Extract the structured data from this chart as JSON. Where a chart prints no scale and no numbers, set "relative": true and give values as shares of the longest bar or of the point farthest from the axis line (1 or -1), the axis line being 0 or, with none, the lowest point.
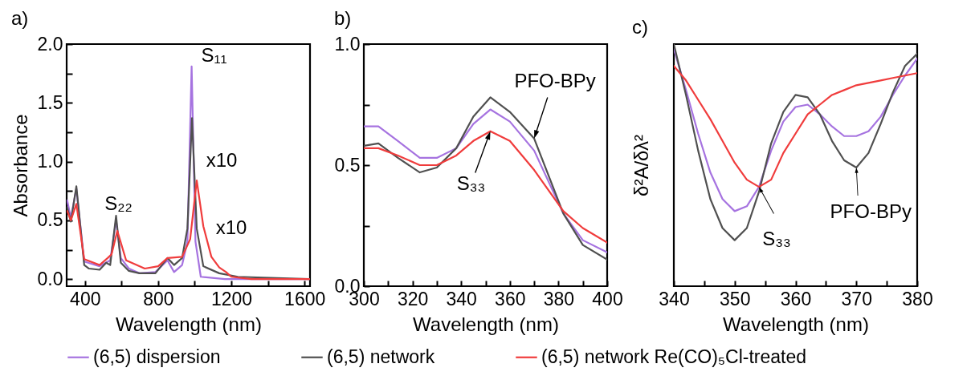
{
  "chart_data": [
    {
      "type": "line",
      "title": "a)",
      "xlabel": "Wavelength (nm)",
      "ylabel": "Absorbance",
      "legend": "bottom",
      "xlim": [
        300,
        1630
      ],
      "xticks": [
        400,
        {
          "value": 600,
          "label": null
        },
        800,
        {
          "value": 1000,
          "label": null
        },
        1200,
        {
          "value": 1400,
          "label": null
        },
        1600
      ],
      "ylim": [
        -0.06,
        2.0
      ],
      "yticks": [
        {
          "value": 0,
          "label": "0.0"
        },
        {
          "value": 0.25,
          "label": null
        },
        {
          "value": 0.5,
          "label": "0.5"
        },
        {
          "value": 0.75,
          "label": null
        },
        {
          "value": 1,
          "label": "1.0"
        },
        {
          "value": 1.25,
          "label": null
        },
        {
          "value": 1.5,
          "label": "1.5"
        },
        {
          "value": 1.75,
          "label": null
        },
        {
          "value": 2,
          "label": "2.0"
        }
      ],
      "series": [
        {
          "name": "(6,5) dispersion",
          "color": "#a673e0",
          "x": [
            303,
            323,
            353,
            396,
            480,
            538,
            570,
            596,
            640,
            698,
            785,
            851,
            887,
            931,
            960,
            983,
            1004,
            1033,
            1164,
            1626
          ],
          "values": [
            0.67,
            0.52,
            0.77,
            0.15,
            0.11,
            0.16,
            0.5,
            0.18,
            0.09,
            0.05,
            0.06,
            0.16,
            0.06,
            0.12,
            0.32,
            1.81,
            0.32,
            0.02,
            0.0,
            0.0
          ]
        },
        {
          "name": "(6,5) network",
          "color": "#505050",
          "x": [
            303,
            323,
            353,
            396,
            422,
            480,
            516,
            538,
            570,
            596,
            640,
            698,
            785,
            851,
            887,
            931,
            960,
            985,
            1011,
            1047,
            1134,
            1236,
            1626
          ],
          "values": [
            0.61,
            0.49,
            0.79,
            0.12,
            0.09,
            0.08,
            0.14,
            0.12,
            0.54,
            0.14,
            0.07,
            0.05,
            0.05,
            0.18,
            0.12,
            0.18,
            0.43,
            1.37,
            0.43,
            0.11,
            0.05,
            0.02,
            0.0
          ]
        },
        {
          "name": "(6,5) network Re(CO)₅Cl-treated",
          "color": "#f03c3c",
          "x": [
            303,
            323,
            353,
            396,
            480,
            524,
            545,
            577,
            625,
            727,
            800,
            851,
            931,
            975,
            1011,
            1047,
            1091,
            1134,
            1171,
            1200,
            1309,
            1626
          ],
          "values": [
            0.58,
            0.5,
            0.64,
            0.17,
            0.12,
            0.18,
            0.21,
            0.41,
            0.16,
            0.09,
            0.11,
            0.18,
            0.19,
            0.34,
            0.84,
            0.45,
            0.19,
            0.1,
            0.06,
            0.02,
            0.0,
            0.0
          ]
        }
      ],
      "annotations": [
        {
          "text": "S₁₁",
          "x": 983,
          "y": 1.81
        },
        {
          "text": "S₂₂",
          "x": 570,
          "y": 0.54
        },
        {
          "text": "x10",
          "x": 985,
          "y": 1.37
        },
        {
          "text": "x10",
          "x": 1011,
          "y": 0.84
        }
      ]
    },
    {
      "type": "line",
      "title": "b)",
      "xlabel": "Wavelength (nm)",
      "legend": "bottom",
      "xlim": [
        300,
        400
      ],
      "xticks": [
        300,
        {
          "value": 310,
          "label": null
        },
        320,
        {
          "value": 330,
          "label": null
        },
        340,
        {
          "value": 350,
          "label": null
        },
        360,
        {
          "value": 370,
          "label": null
        },
        380,
        {
          "value": 390,
          "label": null
        },
        400
      ],
      "ylim": [
        0,
        1
      ],
      "yticks": [
        {
          "value": 0,
          "label": "0.0"
        },
        {
          "value": 0.25,
          "label": null
        },
        {
          "value": 0.5,
          "label": "0.5"
        },
        {
          "value": 0.75,
          "label": null
        },
        {
          "value": 1,
          "label": "1.0"
        }
      ],
      "x": [
        300,
        306,
        314,
        323,
        330,
        338,
        345,
        352,
        360,
        370,
        382,
        390,
        400
      ],
      "series": [
        {
          "name": "(6,5) dispersion",
          "color": "#a673e0",
          "values": [
            0.66,
            0.66,
            0.6,
            0.53,
            0.53,
            0.57,
            0.67,
            0.73,
            0.68,
            0.56,
            0.3,
            0.19,
            0.14
          ]
        },
        {
          "name": "(6,5) network",
          "color": "#505050",
          "values": [
            0.58,
            0.59,
            0.53,
            0.47,
            0.49,
            0.57,
            0.7,
            0.78,
            0.72,
            0.61,
            0.3,
            0.17,
            0.11
          ]
        },
        {
          "name": "(6,5) network Re(CO)₅Cl-treated",
          "color": "#f03c3c",
          "values": [
            0.57,
            0.57,
            0.54,
            0.5,
            0.5,
            0.54,
            0.6,
            0.64,
            0.6,
            0.48,
            0.31,
            0.24,
            0.18
          ]
        }
      ],
      "annotations": [
        {
          "text": "PFO-BPy",
          "x": 370,
          "y": 0.61
        },
        {
          "text": "S₃₃",
          "x": 352,
          "y": 0.64
        }
      ]
    },
    {
      "type": "line",
      "title": "c)",
      "xlabel": "Wavelength (nm)",
      "ylabel": "δ²A/δλ²",
      "legend": "bottom",
      "relative": true,
      "xlim": [
        340,
        380
      ],
      "xticks": [
        340,
        {
          "value": 345,
          "label": null
        },
        350,
        {
          "value": 355,
          "label": null
        },
        360,
        {
          "value": 365,
          "label": null
        },
        370,
        {
          "value": 375,
          "label": null
        },
        380
      ],
      "x": [
        340,
        342,
        344,
        346,
        348,
        350,
        352,
        354,
        356,
        358,
        360,
        362,
        364,
        366,
        368,
        370,
        372,
        374,
        376,
        378,
        380
      ],
      "series": [
        {
          "name": "(6,5) dispersion",
          "color": "#a673e0",
          "values": [
            0.98,
            0.81,
            0.63,
            0.47,
            0.36,
            0.31,
            0.33,
            0.41,
            0.56,
            0.68,
            0.74,
            0.75,
            0.71,
            0.66,
            0.62,
            0.62,
            0.64,
            0.7,
            0.79,
            0.87,
            0.94
          ]
        },
        {
          "name": "(6,5) network",
          "color": "#505050",
          "values": [
            1.0,
            0.79,
            0.56,
            0.36,
            0.24,
            0.19,
            0.24,
            0.39,
            0.59,
            0.72,
            0.79,
            0.78,
            0.71,
            0.6,
            0.52,
            0.49,
            0.55,
            0.67,
            0.8,
            0.91,
            0.96
          ]
        },
        {
          "name": "(6,5) network Re(CO)₅Cl-treated",
          "color": "#f03c3c",
          "values": [
            0.91,
            0.85,
            0.77,
            0.69,
            0.6,
            0.51,
            0.44,
            0.41,
            0.44,
            0.55,
            0.63,
            0.71,
            0.75,
            0.79,
            0.81,
            0.83,
            0.84,
            0.85,
            0.86,
            0.87,
            0.88
          ]
        }
      ],
      "annotations": [
        {
          "text": "S₃₃",
          "x": 354,
          "y": 0.41
        },
        {
          "text": "PFO-BPy",
          "x": 370,
          "y": 0.49
        }
      ]
    }
  ]
}
